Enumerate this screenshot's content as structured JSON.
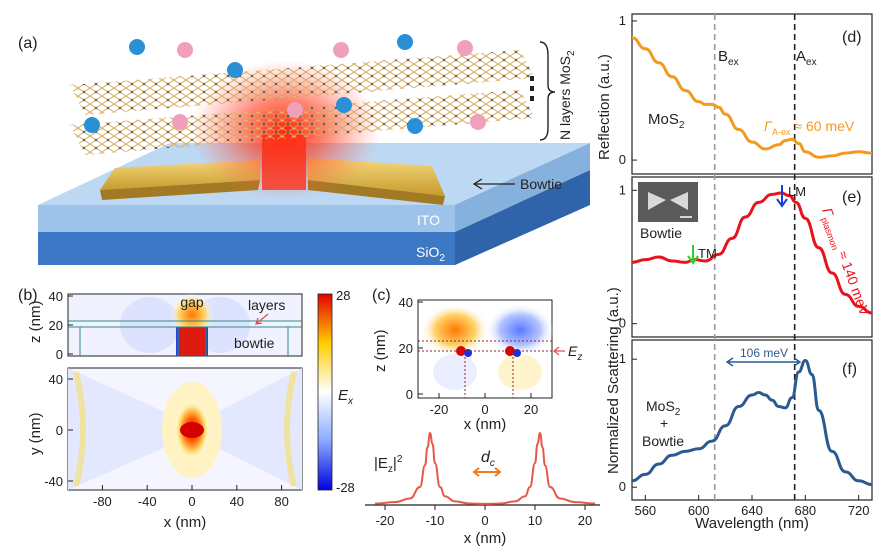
{
  "panels": {
    "a": {
      "label": "(a)",
      "layers_label": "N layers MoS",
      "layers_sub": "2",
      "bowtie_label": "Bowtie",
      "ito_label": "ITO",
      "sio2_label": "SiO",
      "sio2_sub": "2"
    },
    "b": {
      "label": "(b)",
      "gap_label": "gap",
      "layers_label": "layers",
      "bowtie_label": "bowtie",
      "z_axis_label": "z (nm)",
      "y_axis_label": "y (nm)",
      "x_axis_label": "x (nm)",
      "colorbar_label": "E",
      "colorbar_sub": "x",
      "colorbar_max": "28",
      "colorbar_min": "-28",
      "z_ticks": [
        "40",
        "20",
        "0"
      ],
      "y_ticks": [
        "40",
        "0",
        "-40"
      ],
      "x_ticks": [
        "-80",
        "-40",
        "0",
        "40",
        "80"
      ]
    },
    "c": {
      "label": "(c)",
      "z_axis_label": "z (nm)",
      "x_axis_label": "x (nm)",
      "ez_label": "E",
      "ez_sub": "z",
      "intensity_label": "|E",
      "intensity_sub": "z",
      "intensity_tail": "|",
      "intensity_sup": "2",
      "dc_label": "d",
      "dc_sub": "c",
      "z_ticks": [
        "40",
        "20",
        "0"
      ],
      "x_ticks_top": [
        "-20",
        "0",
        "20"
      ],
      "x_ticks_bottom": [
        "-20",
        "-10",
        "0",
        "10",
        "20"
      ]
    },
    "d": {
      "label": "(d)",
      "y_axis_label": "Reflection (a.u.)",
      "sample_label": "MoS",
      "sample_sub": "2",
      "linewidth_label": "Γ",
      "linewidth_sub": "A-ex",
      "linewidth_value": " ≈ 60 meV",
      "y_ticks": [
        "1",
        "0"
      ]
    },
    "e": {
      "label": "(e)",
      "inset_label": "Bowtie",
      "lm_label": "LM",
      "tm_label": "TM",
      "linewidth_label": "Γ",
      "linewidth_sub": "plasmon",
      "linewidth_value": " ≈ 140 meV",
      "y_ticks": [
        "1",
        "0"
      ]
    },
    "f": {
      "label": "(f)",
      "splitting_label": "106 meV",
      "sample_line1": "MoS",
      "sample_line1_sub": "2",
      "sample_line2": "+",
      "sample_line3": "Bowtie",
      "y_ticks": [
        "1",
        "0"
      ],
      "x_ticks": [
        "560",
        "600",
        "640",
        "680",
        "720"
      ],
      "x_axis_label": "Wavelength (nm)"
    },
    "shared": {
      "y_axis_label": "Normalized Scattering (a.u.)",
      "bex_label": "B",
      "bex_sub": "ex",
      "aex_label": "A",
      "aex_sub": "ex"
    }
  },
  "colors": {
    "reflection": "#f39a1e",
    "scattering_bowtie": "#e8141c",
    "scattering_hybrid": "#2a5a8f",
    "intensity_profile": "#e8584a",
    "lm_arrow": "#1a3fd6",
    "tm_arrow": "#2ecc2e",
    "bex_line": "#999999",
    "aex_line": "#222222"
  },
  "chart_data": [
    {
      "type": "line",
      "panel": "d",
      "xlabel": "",
      "ylabel": "Reflection (a.u.)",
      "xlim": [
        550,
        730
      ],
      "ylim": [
        -0.1,
        1.05
      ],
      "x": [
        550,
        560,
        570,
        580,
        590,
        600,
        605,
        610,
        615,
        620,
        630,
        640,
        650,
        660,
        665,
        670,
        675,
        680,
        690,
        700,
        710,
        720,
        730
      ],
      "y": [
        0.88,
        0.8,
        0.7,
        0.6,
        0.5,
        0.42,
        0.4,
        0.4,
        0.38,
        0.33,
        0.22,
        0.13,
        0.08,
        0.11,
        0.14,
        0.15,
        0.12,
        0.06,
        0.02,
        0.03,
        0.05,
        0.06,
        0.05
      ]
    },
    {
      "type": "line",
      "panel": "e",
      "xlabel": "",
      "ylabel": "Normalized Scattering (a.u.)",
      "xlim": [
        550,
        730
      ],
      "ylim": [
        -0.1,
        1.1
      ],
      "x": [
        550,
        560,
        570,
        580,
        590,
        597,
        605,
        615,
        625,
        635,
        645,
        655,
        662,
        668,
        673,
        680,
        690,
        700,
        710,
        720,
        730
      ],
      "y": [
        0.46,
        0.48,
        0.5,
        0.47,
        0.46,
        0.48,
        0.47,
        0.52,
        0.64,
        0.8,
        0.91,
        0.97,
        0.98,
        0.96,
        0.91,
        0.79,
        0.57,
        0.38,
        0.22,
        0.13,
        0.08
      ]
    },
    {
      "type": "line",
      "panel": "f",
      "xlabel": "Wavelength (nm)",
      "ylabel": "Normalized Scattering (a.u.)",
      "xlim": [
        550,
        730
      ],
      "ylim": [
        -0.1,
        1.15
      ],
      "x": [
        550,
        560,
        570,
        580,
        590,
        600,
        610,
        620,
        630,
        640,
        645,
        650,
        655,
        660,
        665,
        670,
        675,
        680,
        685,
        690,
        700,
        710,
        720,
        730
      ],
      "y": [
        0.05,
        0.1,
        0.18,
        0.25,
        0.28,
        0.3,
        0.36,
        0.48,
        0.63,
        0.72,
        0.74,
        0.72,
        0.68,
        0.63,
        0.62,
        0.7,
        0.9,
        0.99,
        0.88,
        0.6,
        0.28,
        0.12,
        0.05,
        0.02
      ]
    },
    {
      "type": "line",
      "panel": "c",
      "xlabel": "x (nm)",
      "ylabel": "",
      "xlim": [
        -22,
        22
      ],
      "ylim": [
        0,
        1.05
      ],
      "x": [
        -22,
        -18,
        -15,
        -13,
        -12,
        -11.5,
        -11,
        -10.5,
        -10,
        -9,
        -8,
        -6,
        -3,
        0,
        3,
        6,
        8,
        9,
        10,
        10.5,
        11,
        11.5,
        12,
        13,
        15,
        18,
        22
      ],
      "y": [
        0.02,
        0.04,
        0.09,
        0.25,
        0.55,
        0.8,
        1.0,
        0.85,
        0.58,
        0.25,
        0.12,
        0.05,
        0.02,
        0.015,
        0.02,
        0.05,
        0.12,
        0.25,
        0.58,
        0.85,
        1.0,
        0.8,
        0.55,
        0.25,
        0.09,
        0.04,
        0.02
      ]
    }
  ]
}
